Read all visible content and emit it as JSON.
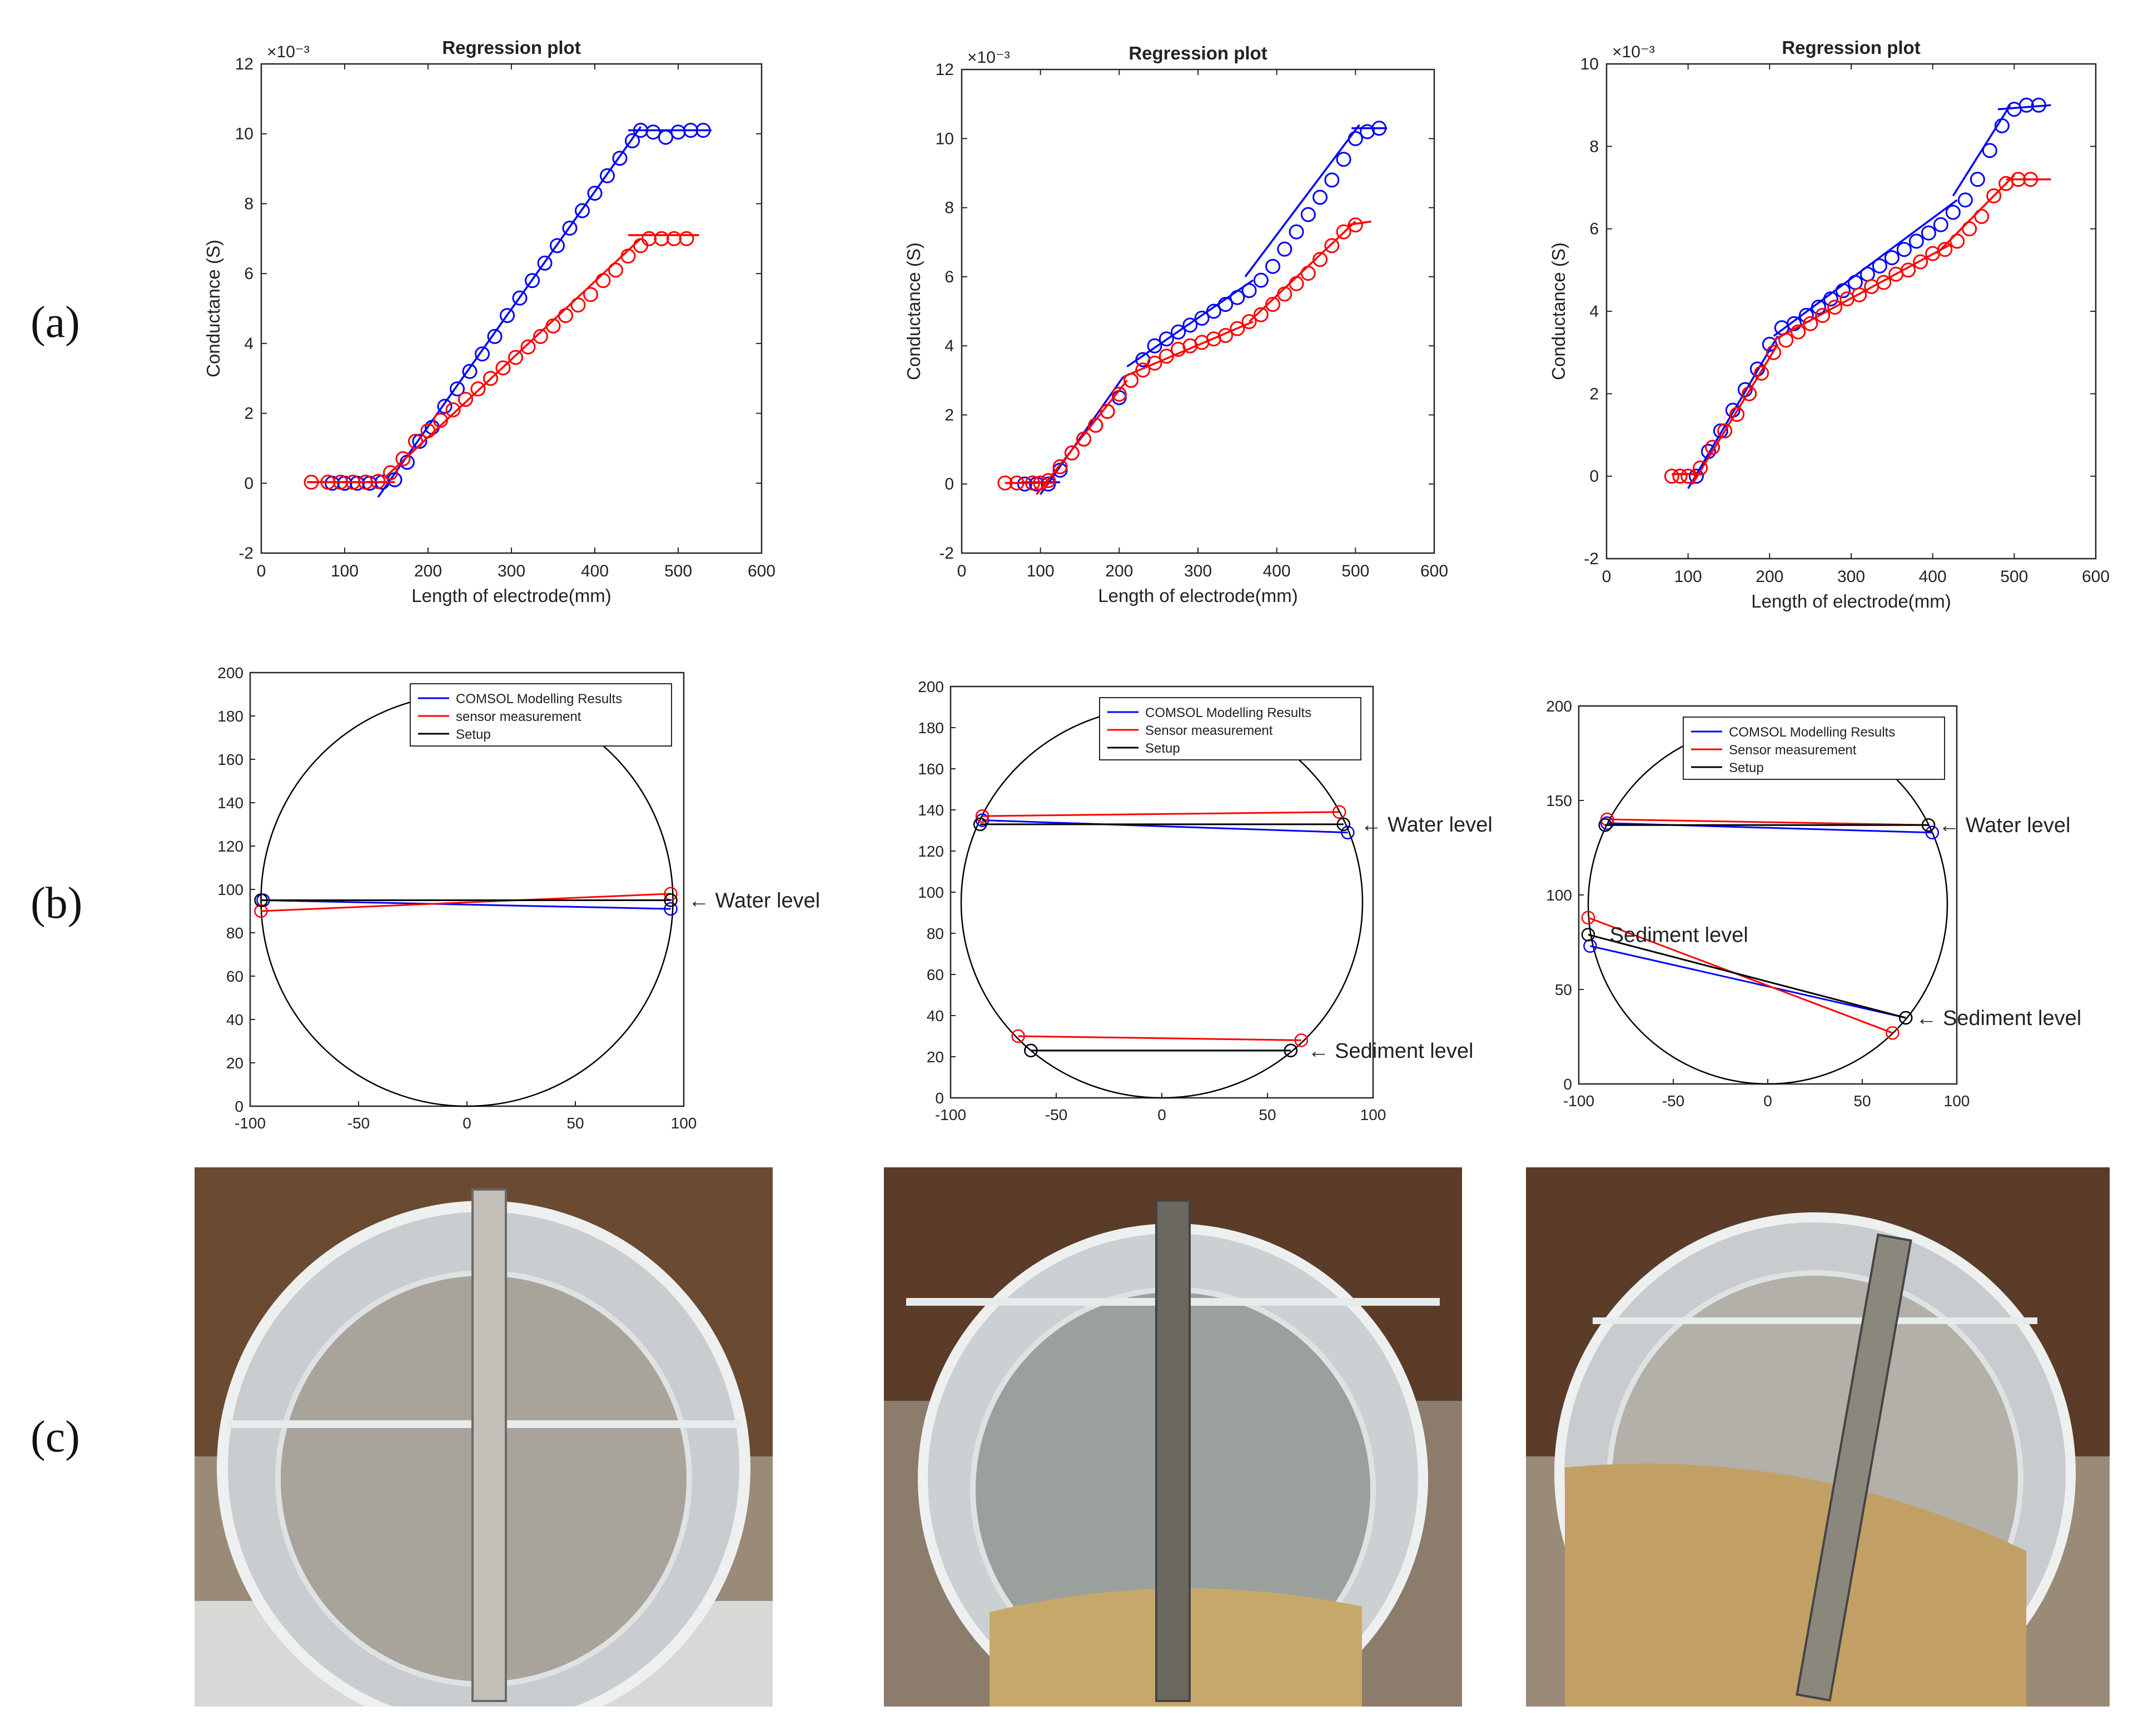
{
  "row_labels": [
    "(a)",
    "(b)",
    "(c)"
  ],
  "chart_data": [
    {
      "type": "line",
      "title": "Regression plot",
      "xlabel": "Length of electrode(mm)",
      "ylabel": "Conductance (S)",
      "exponent_label": "×10⁻³",
      "xlim": [
        0,
        600
      ],
      "ylim": [
        -2,
        12
      ],
      "xticks": [
        0,
        100,
        200,
        300,
        400,
        500,
        600
      ],
      "yticks": [
        -2,
        0,
        2,
        4,
        6,
        8,
        10,
        12
      ],
      "series": [
        {
          "name": "blue",
          "color": "#0000ff",
          "x": [
            85,
            100,
            115,
            130,
            145,
            160,
            175,
            190,
            205,
            220,
            235,
            250,
            265,
            280,
            295,
            310,
            325,
            340,
            355,
            370,
            385,
            400,
            415,
            430,
            445,
            455,
            470,
            485,
            500,
            515,
            530
          ],
          "y": [
            0,
            0,
            0,
            0,
            0.03,
            0.1,
            0.6,
            1.2,
            1.6,
            2.2,
            2.7,
            3.2,
            3.7,
            4.2,
            4.8,
            5.3,
            5.8,
            6.3,
            6.8,
            7.3,
            7.8,
            8.3,
            8.8,
            9.3,
            9.8,
            10.1,
            10.05,
            9.9,
            10.05,
            10.1,
            10.1
          ],
          "fits": [
            [
              [
                55,
                0.03
              ],
              [
                150,
                0.03
              ]
            ],
            [
              [
                140,
                -0.4
              ],
              [
                455,
                10.2
              ]
            ],
            [
              [
                440,
                10.1
              ],
              [
                540,
                10.1
              ]
            ]
          ]
        },
        {
          "name": "red",
          "color": "#ff0000",
          "x": [
            60,
            80,
            95,
            110,
            125,
            140,
            155,
            170,
            185,
            200,
            215,
            230,
            245,
            260,
            275,
            290,
            305,
            320,
            335,
            350,
            365,
            380,
            395,
            410,
            425,
            440,
            455,
            465,
            480,
            495,
            510
          ],
          "y": [
            0.03,
            0.03,
            0.03,
            0.03,
            0.03,
            0.05,
            0.3,
            0.7,
            1.2,
            1.5,
            1.8,
            2.1,
            2.4,
            2.7,
            3.0,
            3.3,
            3.6,
            3.9,
            4.2,
            4.5,
            4.8,
            5.1,
            5.4,
            5.8,
            6.1,
            6.5,
            6.8,
            7.0,
            7.0,
            7.0,
            7.0
          ],
          "fits": [
            [
              [
                55,
                0.03
              ],
              [
                160,
                0.03
              ]
            ],
            [
              [
                150,
                0.2
              ],
              [
                455,
                7.0
              ]
            ],
            [
              [
                440,
                7.1
              ],
              [
                525,
                7.1
              ]
            ]
          ]
        }
      ]
    },
    {
      "type": "line",
      "title": "Regression plot",
      "xlabel": "Length of electrode(mm)",
      "ylabel": "Conductance (S)",
      "exponent_label": "×10⁻³",
      "xlim": [
        0,
        600
      ],
      "ylim": [
        -2,
        12
      ],
      "xticks": [
        0,
        100,
        200,
        300,
        400,
        500,
        600
      ],
      "yticks": [
        -2,
        0,
        2,
        4,
        6,
        8,
        10,
        12
      ],
      "series": [
        {
          "name": "blue",
          "color": "#0000ff",
          "x": [
            80,
            95,
            110,
            125,
            140,
            155,
            170,
            185,
            200,
            215,
            230,
            245,
            260,
            275,
            290,
            305,
            320,
            335,
            350,
            365,
            380,
            395,
            410,
            425,
            440,
            455,
            470,
            485,
            500,
            515,
            530
          ],
          "y": [
            0,
            0,
            0,
            0.4,
            0.9,
            1.3,
            1.7,
            2.1,
            2.5,
            3.0,
            3.6,
            4.0,
            4.2,
            4.4,
            4.6,
            4.8,
            5.0,
            5.2,
            5.4,
            5.6,
            5.9,
            6.3,
            6.8,
            7.3,
            7.8,
            8.3,
            8.8,
            9.4,
            10.0,
            10.2,
            10.3
          ],
          "fits": [
            [
              [
                75,
                0.05
              ],
              [
                125,
                0.05
              ]
            ],
            [
              [
                100,
                -0.3
              ],
              [
                205,
                3.1
              ]
            ],
            [
              [
                210,
                3.4
              ],
              [
                370,
                5.9
              ]
            ],
            [
              [
                360,
                6.0
              ],
              [
                505,
                10.4
              ]
            ],
            [
              [
                495,
                10.3
              ],
              [
                540,
                10.3
              ]
            ]
          ]
        },
        {
          "name": "red",
          "color": "#ff0000",
          "x": [
            55,
            70,
            90,
            100,
            110,
            125,
            140,
            155,
            170,
            185,
            200,
            215,
            230,
            245,
            260,
            275,
            290,
            305,
            320,
            335,
            350,
            365,
            380,
            395,
            410,
            425,
            440,
            455,
            470,
            485,
            500
          ],
          "y": [
            0.03,
            0.03,
            0.03,
            0.03,
            0.1,
            0.5,
            0.9,
            1.3,
            1.7,
            2.1,
            2.6,
            3.0,
            3.3,
            3.5,
            3.7,
            3.9,
            4.0,
            4.1,
            4.2,
            4.3,
            4.5,
            4.7,
            4.9,
            5.2,
            5.5,
            5.8,
            6.1,
            6.5,
            6.9,
            7.3,
            7.5
          ],
          "fits": [
            [
              [
                55,
                0.03
              ],
              [
                115,
                0.03
              ]
            ],
            [
              [
                95,
                -0.3
              ],
              [
                210,
                3.0
              ]
            ],
            [
              [
                205,
                3.1
              ],
              [
                370,
                4.7
              ]
            ],
            [
              [
                365,
                4.7
              ],
              [
                500,
                7.6
              ]
            ],
            [
              [
                490,
                7.5
              ],
              [
                520,
                7.6
              ]
            ]
          ]
        }
      ]
    },
    {
      "type": "line",
      "title": "Regression plot",
      "xlabel": "Length of electrode(mm)",
      "ylabel": "Conductance (S)",
      "exponent_label": "×10⁻³",
      "xlim": [
        0,
        600
      ],
      "ylim": [
        -2,
        10
      ],
      "xticks": [
        0,
        100,
        200,
        300,
        400,
        500,
        600
      ],
      "yticks": [
        -2,
        0,
        2,
        4,
        6,
        8,
        10
      ],
      "series": [
        {
          "name": "blue",
          "color": "#0000ff",
          "x": [
            90,
            100,
            110,
            125,
            140,
            155,
            170,
            185,
            200,
            215,
            230,
            245,
            260,
            275,
            290,
            305,
            320,
            335,
            350,
            365,
            380,
            395,
            410,
            425,
            440,
            455,
            470,
            485,
            500,
            515,
            530
          ],
          "y": [
            0,
            0,
            0,
            0.6,
            1.1,
            1.6,
            2.1,
            2.6,
            3.2,
            3.6,
            3.7,
            3.9,
            4.1,
            4.3,
            4.5,
            4.7,
            4.9,
            5.1,
            5.3,
            5.5,
            5.7,
            5.9,
            6.1,
            6.4,
            6.7,
            7.2,
            7.9,
            8.5,
            8.9,
            9.0,
            9.0
          ],
          "fits": [
            [
              [
                80,
                0.05
              ],
              [
                120,
                0.05
              ]
            ],
            [
              [
                100,
                -0.3
              ],
              [
                210,
                3.4
              ]
            ],
            [
              [
                205,
                3.4
              ],
              [
                430,
                6.7
              ]
            ],
            [
              [
                425,
                6.8
              ],
              [
                495,
                9.0
              ]
            ],
            [
              [
                480,
                8.9
              ],
              [
                545,
                9.0
              ]
            ]
          ]
        },
        {
          "name": "red",
          "color": "#ff0000",
          "x": [
            80,
            90,
            100,
            115,
            130,
            145,
            160,
            175,
            190,
            205,
            220,
            235,
            250,
            265,
            280,
            295,
            310,
            325,
            340,
            355,
            370,
            385,
            400,
            415,
            430,
            445,
            460,
            475,
            490,
            505,
            520
          ],
          "y": [
            0,
            0,
            0,
            0.2,
            0.7,
            1.1,
            1.5,
            2.0,
            2.5,
            3.0,
            3.3,
            3.5,
            3.7,
            3.9,
            4.1,
            4.3,
            4.4,
            4.6,
            4.7,
            4.9,
            5.0,
            5.2,
            5.4,
            5.5,
            5.7,
            6.0,
            6.3,
            6.8,
            7.1,
            7.2,
            7.2
          ],
          "fits": [
            [
              [
                80,
                0.05
              ],
              [
                115,
                0.05
              ]
            ],
            [
              [
                105,
                -0.2
              ],
              [
                210,
                3.2
              ]
            ],
            [
              [
                205,
                3.3
              ],
              [
                420,
                5.6
              ]
            ],
            [
              [
                405,
                5.4
              ],
              [
                500,
                7.3
              ]
            ],
            [
              [
                490,
                7.2
              ],
              [
                545,
                7.2
              ]
            ]
          ]
        }
      ]
    },
    {
      "type": "line",
      "xlim": [
        -100,
        100
      ],
      "ylim": [
        0,
        200
      ],
      "xticks": [
        -100,
        -50,
        0,
        50,
        100
      ],
      "yticks": [
        0,
        20,
        40,
        60,
        80,
        100,
        120,
        140,
        160,
        180,
        200
      ],
      "legend_position": "top-right",
      "legend": [
        {
          "label": "COMSOL Modelling Results",
          "color": "#0000ff"
        },
        {
          "label": "sensor measurement",
          "color": "#ff0000"
        },
        {
          "label": "Setup",
          "color": "#000000"
        }
      ],
      "segments": [
        {
          "color": "#0000ff",
          "points": [
            [
              -94,
              95
            ],
            [
              94,
              91
            ]
          ]
        },
        {
          "color": "#ff0000",
          "points": [
            [
              -95,
              90
            ],
            [
              94,
              98
            ]
          ]
        },
        {
          "color": "#000000",
          "points": [
            [
              -95,
              95
            ],
            [
              94,
              95
            ]
          ]
        }
      ],
      "annotations": [
        {
          "text": "← Water level",
          "x": 100,
          "y": 95
        }
      ]
    },
    {
      "type": "line",
      "xlim": [
        -100,
        100
      ],
      "ylim": [
        0,
        200
      ],
      "xticks": [
        -100,
        -50,
        0,
        50,
        100
      ],
      "yticks": [
        0,
        20,
        40,
        60,
        80,
        100,
        120,
        140,
        160,
        180,
        200
      ],
      "legend_position": "top-right",
      "legend": [
        {
          "label": "COMSOL Modelling Results",
          "color": "#0000ff"
        },
        {
          "label": "Sensor measurement",
          "color": "#ff0000"
        },
        {
          "label": "Setup",
          "color": "#000000"
        }
      ],
      "segments": [
        {
          "color": "#0000ff",
          "points": [
            [
              -85,
              135
            ],
            [
              88,
              129
            ]
          ]
        },
        {
          "color": "#ff0000",
          "points": [
            [
              -85,
              137
            ],
            [
              84,
              139
            ]
          ]
        },
        {
          "color": "#000000",
          "points": [
            [
              -86,
              133
            ],
            [
              86,
              133
            ]
          ]
        },
        {
          "color": "#0000ff",
          "points": [
            [
              -62,
              23
            ],
            [
              61,
              23
            ]
          ]
        },
        {
          "color": "#ff0000",
          "points": [
            [
              -68,
              30
            ],
            [
              66,
              28
            ]
          ]
        },
        {
          "color": "#000000",
          "points": [
            [
              -62,
              23
            ],
            [
              61,
              23
            ]
          ]
        }
      ],
      "annotations": [
        {
          "text": "← Water level",
          "x": 92,
          "y": 133
        },
        {
          "text": "← Sediment level",
          "x": 67,
          "y": 23
        }
      ]
    },
    {
      "type": "line",
      "xlim": [
        -100,
        100
      ],
      "ylim": [
        0,
        200
      ],
      "xticks": [
        -100,
        -50,
        0,
        50,
        100
      ],
      "yticks": [
        0,
        50,
        100,
        150,
        200
      ],
      "legend_position": "top-right",
      "legend": [
        {
          "label": "COMSOL Modelling Results",
          "color": "#0000ff"
        },
        {
          "label": "Sensor measurement",
          "color": "#ff0000"
        },
        {
          "label": "Setup",
          "color": "#000000"
        }
      ],
      "segments": [
        {
          "color": "#0000ff",
          "points": [
            [
              -85,
              138
            ],
            [
              87,
              133
            ]
          ]
        },
        {
          "color": "#ff0000",
          "points": [
            [
              -85,
              140
            ],
            [
              85,
              137
            ]
          ]
        },
        {
          "color": "#000000",
          "points": [
            [
              -86,
              137
            ],
            [
              85,
              137
            ]
          ]
        },
        {
          "color": "#0000ff",
          "points": [
            [
              -94,
              73
            ],
            [
              73,
              35
            ]
          ]
        },
        {
          "color": "#ff0000",
          "points": [
            [
              -95,
              88
            ],
            [
              66,
              27
            ]
          ]
        },
        {
          "color": "#000000",
          "points": [
            [
              -95,
              79
            ],
            [
              73,
              35
            ]
          ]
        }
      ],
      "annotations": [
        {
          "text": "← Water level",
          "x": 88,
          "y": 137
        },
        {
          "text": "Sediment level",
          "x": -86,
          "y": 79
        },
        {
          "text": "← Sediment level",
          "x": 76,
          "y": 35
        }
      ]
    }
  ]
}
